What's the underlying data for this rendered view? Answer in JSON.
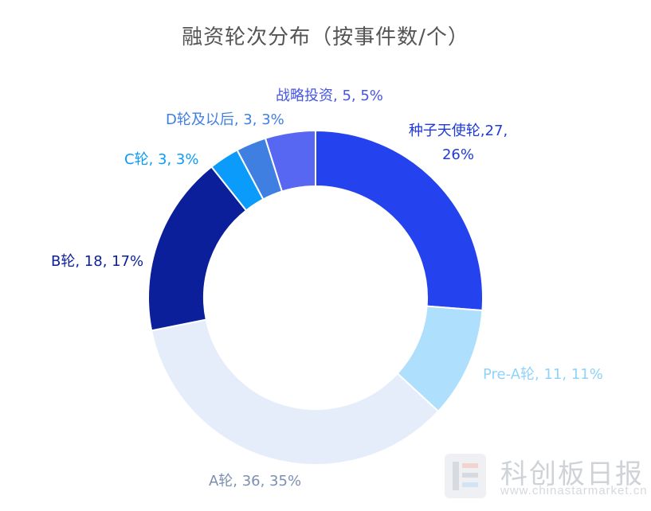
{
  "chart_data": {
    "type": "pie",
    "variant": "donut",
    "title": "融资轮次分布（按事件数/个）",
    "slices": [
      {
        "label": "种子天使轮",
        "value": 27,
        "percent": "26%",
        "color": "#2442ee",
        "label_lines": [
          "种子天使轮,27,",
          "26%"
        ],
        "label_color": "#1f3ad6"
      },
      {
        "label": "Pre-A轮",
        "value": 11,
        "percent": "11%",
        "color": "#aee0fe",
        "label_lines": [
          "Pre-A轮, 11, 11%"
        ],
        "label_color": "#8fd3fb"
      },
      {
        "label": "A轮",
        "value": 36,
        "percent": "35%",
        "color": "#e4edf9",
        "label_lines": [
          "A轮, 36, 35%"
        ],
        "label_color": "#7d8fb0"
      },
      {
        "label": "B轮",
        "value": 18,
        "percent": "17%",
        "color": "#0c1f9a",
        "label_lines": [
          "B轮, 18, 17%"
        ],
        "label_color": "#0c1f9a"
      },
      {
        "label": "C轮",
        "value": 3,
        "percent": "3%",
        "color": "#0a9bfb",
        "label_lines": [
          "C轮, 3, 3%"
        ],
        "label_color": "#0a9bfb"
      },
      {
        "label": "D轮及以后",
        "value": 3,
        "percent": "3%",
        "color": "#3f7fe2",
        "label_lines": [
          "D轮及以后, 3, 3%"
        ],
        "label_color": "#3f7fe2"
      },
      {
        "label": "战略投资",
        "value": 5,
        "percent": "5%",
        "color": "#5767f2",
        "label_lines": [
          "战略投资, 5, 5%"
        ],
        "label_color": "#4556e2"
      }
    ]
  },
  "watermark": {
    "brand": "科创板日报",
    "url": "www.chinastarmarket.cn"
  }
}
